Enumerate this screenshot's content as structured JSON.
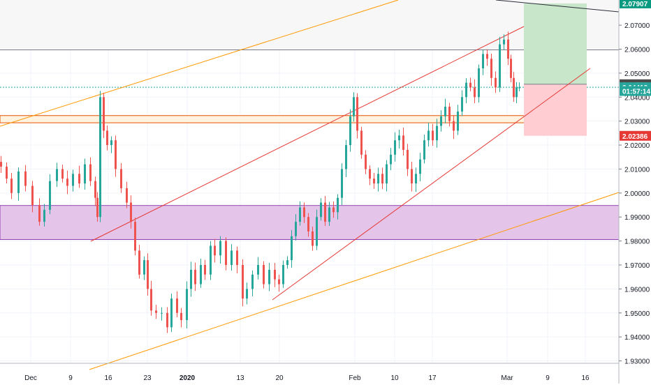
{
  "chart_data": {
    "type": "candlestick",
    "price_axis": {
      "ticks": [
        "2.07000",
        "2.06000",
        "2.05000",
        "2.04000",
        "2.03000",
        "2.02000",
        "2.01000",
        "2.00000",
        "1.99000",
        "1.98000",
        "1.97000",
        "1.96000",
        "1.95000",
        "1.94000",
        "1.93000"
      ],
      "tick_values": [
        2.07,
        2.06,
        2.05,
        2.04,
        2.03,
        2.02,
        2.01,
        2.0,
        1.99,
        1.98,
        1.97,
        1.96,
        1.95,
        1.94,
        1.93
      ],
      "range": [
        1.929,
        2.0805
      ]
    },
    "time_axis": {
      "labels": [
        "Dec",
        "9",
        "16",
        "23",
        "2020",
        "13",
        "20",
        "Feb",
        "10",
        "17",
        "Mar",
        "9",
        "16"
      ]
    },
    "price_labels": [
      {
        "text": "2.07907",
        "value": 2.07907,
        "bg": "#089981",
        "fg": "#ffffff"
      },
      {
        "text": "2.04538",
        "value": 2.04538,
        "bg": "#4a4a4a",
        "fg": "#ffffff"
      },
      {
        "text": "2.04412",
        "value": 2.04412,
        "bg": "#26a69a",
        "fg": "#ffffff"
      },
      {
        "text": "01:57:14",
        "value": 2.04255,
        "bg": "#26a69a",
        "fg": "#ffffff"
      },
      {
        "text": "2.02386",
        "value": 2.02386,
        "bg": "#e53935",
        "fg": "#ffffff"
      }
    ],
    "zones": [
      {
        "name": "resistance-band",
        "from": 2.0597,
        "to": 2.0805,
        "color": "#f7f7f7"
      },
      {
        "name": "purple-support-zone",
        "from": 1.9806,
        "to": 1.9948,
        "color": "#e1bee7"
      }
    ],
    "horizontal_lines": [
      {
        "name": "resistance-line",
        "value": 2.0597,
        "color": "#787b86"
      },
      {
        "name": "current-price-dotted-line",
        "value": 2.04412,
        "color": "#26a69a"
      }
    ],
    "position": {
      "entry": 2.04538,
      "take_profit": 2.07907,
      "stop_loss": 2.02386,
      "profit_color": "#c8e6c9",
      "loss_color": "#ffcdd2"
    },
    "colors": {
      "up": "#26a69a",
      "down": "#ef5350",
      "channel": "#e53935",
      "outer_channel": "#ff9800",
      "grid": "#f0f3fa",
      "axis_text": "#131722"
    }
  }
}
